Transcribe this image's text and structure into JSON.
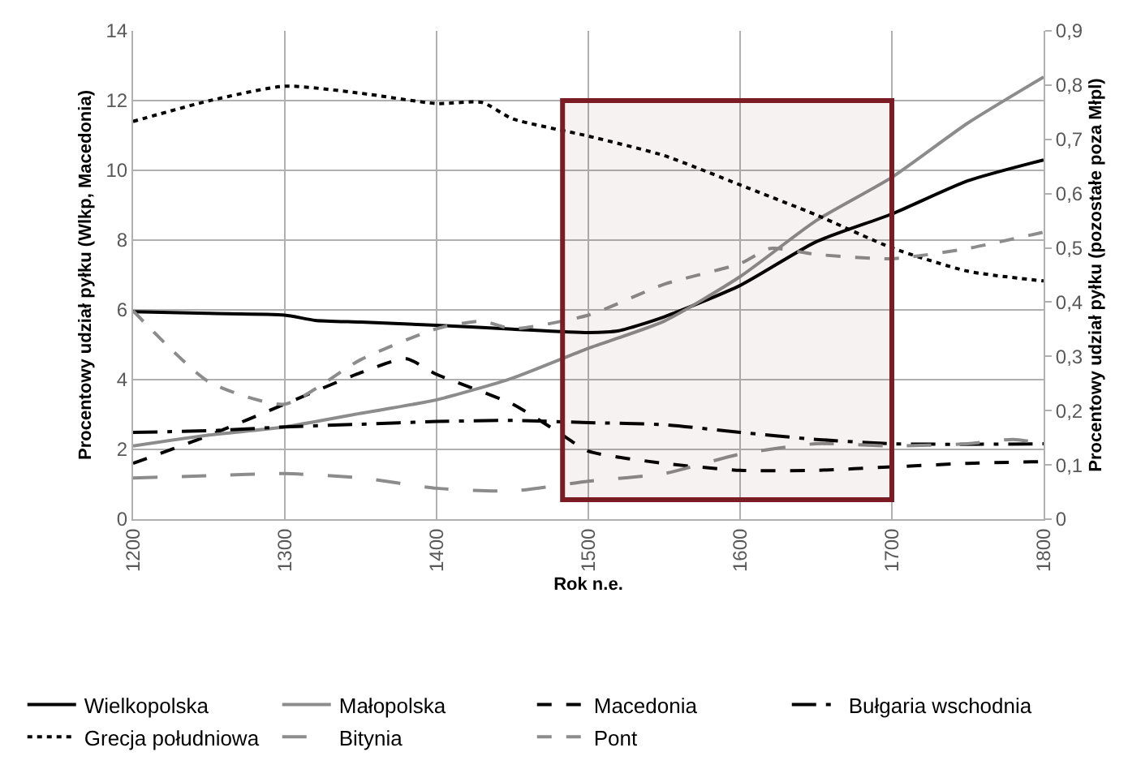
{
  "chart_data": {
    "type": "line",
    "xlabel": "Rok n.e.",
    "ylabel": "Procentowy udział pyłku (Wlkp, Macedonia)",
    "y2label": "Procentowy udział pyłku (pozostałe poza Młpl)",
    "xlim": [
      1200,
      1800
    ],
    "xticks": [
      1200,
      1300,
      1400,
      1500,
      1600,
      1700,
      1800
    ],
    "ylim": [
      0,
      14
    ],
    "yticks": [
      0,
      2,
      4,
      6,
      8,
      10,
      12,
      14
    ],
    "y2lim": [
      0,
      0.9
    ],
    "y2ticks": [
      0,
      {
        "value": 0.1,
        "label": "0,1"
      },
      {
        "value": 0.2,
        "label": "0,2"
      },
      {
        "value": 0.3,
        "label": "0,3"
      },
      {
        "value": 0.4,
        "label": "0,4"
      },
      {
        "value": 0.5,
        "label": "0,5"
      },
      {
        "value": 0.6,
        "label": "0,6"
      },
      {
        "value": 0.7,
        "label": "0,7"
      },
      {
        "value": 0.8,
        "label": "0,8"
      },
      {
        "value": 0.9,
        "label": "0,9"
      }
    ],
    "grid": true,
    "legend": "bottom",
    "marker": "none",
    "bands": [
      {
        "axis": "x",
        "from": 1483,
        "to": 1700,
        "color": "#7b1c24"
      }
    ],
    "series": [
      {
        "name": "Wielkopolska",
        "color": "#000000",
        "line_style": "solid",
        "x": [
          1200,
          1250,
          1300,
          1320,
          1350,
          1400,
          1450,
          1500,
          1520,
          1550,
          1600,
          1650,
          1700,
          1750,
          1800
        ],
        "values": [
          5.95,
          5.9,
          5.85,
          5.7,
          5.65,
          5.56,
          5.45,
          5.35,
          5.4,
          5.8,
          6.7,
          7.95,
          8.75,
          9.7,
          10.3
        ]
      },
      {
        "name": "Małopolska",
        "color": "#8c8c8c",
        "line_style": "solid",
        "axis": "y2",
        "x": [
          1200,
          1250,
          1300,
          1350,
          1400,
          1450,
          1500,
          1550,
          1600,
          1650,
          1700,
          1750,
          1800
        ],
        "values": [
          0.135,
          0.155,
          0.17,
          0.195,
          0.22,
          0.26,
          0.315,
          0.365,
          0.447,
          0.55,
          0.63,
          0.73,
          0.815
        ]
      },
      {
        "name": "Macedonia",
        "color": "#000000",
        "line_style": "dashed",
        "x": [
          1200,
          1250,
          1300,
          1350,
          1380,
          1400,
          1450,
          1480,
          1500,
          1550,
          1600,
          1650,
          1700,
          1750,
          1800
        ],
        "values": [
          1.6,
          2.4,
          3.3,
          4.2,
          4.6,
          4.15,
          3.3,
          2.5,
          1.95,
          1.6,
          1.4,
          1.4,
          1.5,
          1.6,
          1.65
        ]
      },
      {
        "name": "Bułgaria wschodnia",
        "color": "#000000",
        "line_style": "dashdot",
        "axis": "y2",
        "x": [
          1200,
          1250,
          1300,
          1350,
          1400,
          1450,
          1500,
          1550,
          1600,
          1650,
          1700,
          1750,
          1800
        ],
        "values": [
          0.16,
          0.163,
          0.17,
          0.175,
          0.18,
          0.182,
          0.178,
          0.174,
          0.16,
          0.147,
          0.139,
          0.138,
          0.139
        ]
      },
      {
        "name": "Grecja południowa",
        "color": "#000000",
        "line_style": "dotted",
        "axis": "y2",
        "x": [
          1200,
          1250,
          1300,
          1350,
          1400,
          1430,
          1450,
          1500,
          1550,
          1600,
          1650,
          1700,
          1750,
          1800
        ],
        "values": [
          0.733,
          0.771,
          0.798,
          0.785,
          0.766,
          0.768,
          0.738,
          0.706,
          0.67,
          0.616,
          0.561,
          0.5,
          0.457,
          0.439
        ]
      },
      {
        "name": "Bitynia",
        "color": "#8c8c8c",
        "line_style": "longdash",
        "axis": "y2",
        "x": [
          1200,
          1250,
          1300,
          1350,
          1400,
          1450,
          1500,
          1550,
          1600,
          1650,
          1700,
          1750,
          1780,
          1800
        ],
        "values": [
          0.076,
          0.08,
          0.084,
          0.076,
          0.057,
          0.052,
          0.07,
          0.084,
          0.12,
          0.139,
          0.135,
          0.139,
          0.147,
          0.139
        ]
      },
      {
        "name": "Pont",
        "color": "#8c8c8c",
        "line_style": "dashed",
        "axis": "y2",
        "x": [
          1200,
          1250,
          1300,
          1350,
          1400,
          1430,
          1450,
          1500,
          1550,
          1600,
          1620,
          1650,
          1700,
          1750,
          1800
        ],
        "values": [
          0.384,
          0.253,
          0.212,
          0.294,
          0.351,
          0.365,
          0.351,
          0.376,
          0.433,
          0.471,
          0.499,
          0.488,
          0.48,
          0.499,
          0.529
        ]
      }
    ]
  }
}
